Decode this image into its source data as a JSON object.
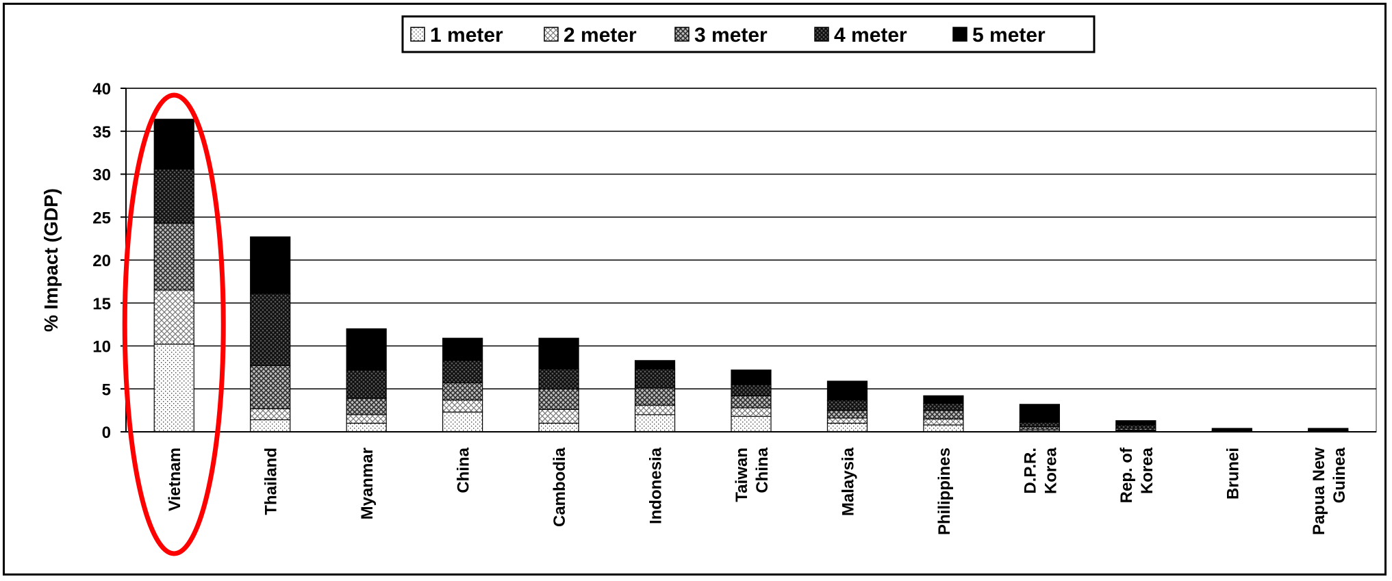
{
  "chart_data": {
    "type": "bar",
    "stacked": true,
    "categories": [
      "Vietnam",
      "Thailand",
      "Myanmar",
      "China",
      "Cambodia",
      "Indonesia",
      "Taiwan China",
      "Malaysia",
      "Philippines",
      "D.P.R. Korea",
      "Rep. of Korea",
      "Brunei",
      "Papua New Guinea"
    ],
    "category_lines": [
      [
        "Vietnam"
      ],
      [
        "Thailand"
      ],
      [
        "Myanmar"
      ],
      [
        "China"
      ],
      [
        "Cambodia"
      ],
      [
        "Indonesia"
      ],
      [
        "Taiwan",
        "China"
      ],
      [
        "Malaysia"
      ],
      [
        "Philippines"
      ],
      [
        "D.P.R.",
        "Korea"
      ],
      [
        "Rep. of",
        "Korea"
      ],
      [
        "Brunei"
      ],
      [
        "Papua New",
        "Guinea"
      ]
    ],
    "series": [
      {
        "name": "1 meter",
        "pattern": "dots-sparse",
        "values": [
          10.2,
          1.4,
          1.0,
          2.3,
          1.0,
          2.0,
          1.8,
          1.0,
          0.8,
          0.1,
          0.1,
          0.0,
          0.0
        ]
      },
      {
        "name": "2 meter",
        "pattern": "cross-light",
        "values": [
          6.3,
          1.3,
          1.0,
          1.4,
          1.6,
          1.1,
          1.0,
          0.6,
          0.7,
          0.2,
          0.1,
          0.0,
          0.0
        ]
      },
      {
        "name": "3 meter",
        "pattern": "cross-medium",
        "values": [
          7.8,
          5.0,
          1.9,
          2.0,
          2.4,
          2.0,
          1.4,
          0.9,
          1.0,
          0.3,
          0.2,
          0.1,
          0.1
        ]
      },
      {
        "name": "4 meter",
        "pattern": "cross-dark",
        "values": [
          6.3,
          8.4,
          3.3,
          2.6,
          2.3,
          2.2,
          1.3,
          1.2,
          0.8,
          0.5,
          0.4,
          0.1,
          0.1
        ]
      },
      {
        "name": "5 meter",
        "pattern": "solid-black",
        "values": [
          5.8,
          6.6,
          4.8,
          2.6,
          3.6,
          1.0,
          1.7,
          2.2,
          0.9,
          2.1,
          0.5,
          0.2,
          0.2
        ]
      }
    ],
    "ylabel": "% Impact (GDP)",
    "xlabel": "",
    "ylim": [
      0,
      40
    ],
    "yticks": [
      0,
      5,
      10,
      15,
      20,
      25,
      30,
      35,
      40
    ],
    "grid": "horizontal",
    "legend_position": "top-center",
    "highlight": {
      "category": "Vietnam",
      "shape": "ellipse",
      "color": "#ff0000"
    }
  }
}
